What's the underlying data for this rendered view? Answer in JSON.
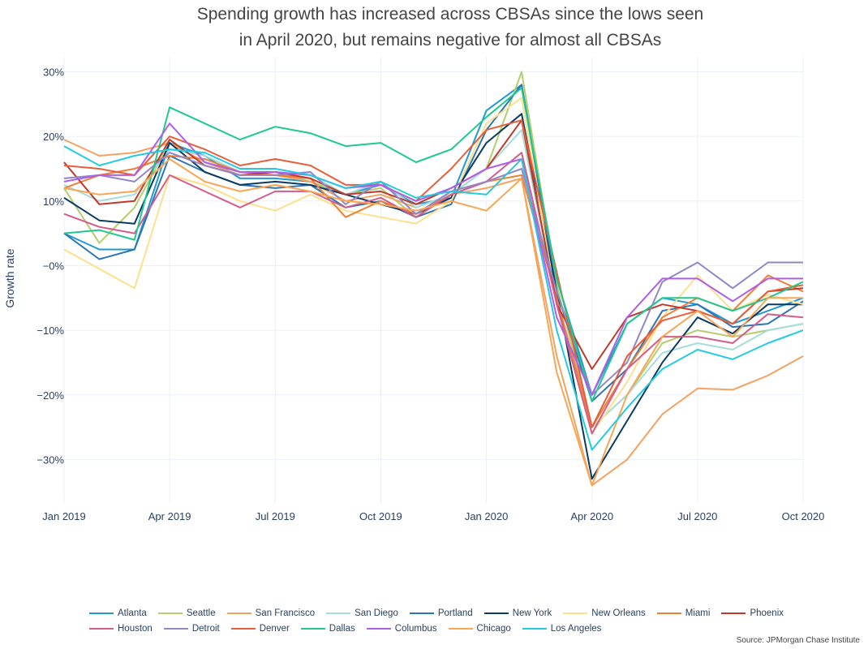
{
  "chart_data": {
    "type": "line",
    "title_lines": [
      "Spending growth has increased across CBSAs since the lows seen",
      "in April 2020, but remains negative for almost all CBSAs"
    ],
    "xlabel": "",
    "ylabel": "Growth rate",
    "x": [
      "2019-01",
      "2019-02",
      "2019-03",
      "2019-04",
      "2019-05",
      "2019-06",
      "2019-07",
      "2019-08",
      "2019-09",
      "2019-10",
      "2019-11",
      "2019-12",
      "2020-01",
      "2020-02",
      "2020-03",
      "2020-04",
      "2020-05",
      "2020-06",
      "2020-07",
      "2020-08",
      "2020-09",
      "2020-10"
    ],
    "x_ticks": [
      {
        "x": "2019-01",
        "label": "Jan 2019"
      },
      {
        "x": "2019-04",
        "label": "Apr 2019"
      },
      {
        "x": "2019-07",
        "label": "Jul 2019"
      },
      {
        "x": "2019-10",
        "label": "Oct 2019"
      },
      {
        "x": "2020-01",
        "label": "Jan 2020"
      },
      {
        "x": "2020-04",
        "label": "Apr 2020"
      },
      {
        "x": "2020-07",
        "label": "Jul 2020"
      },
      {
        "x": "2020-10",
        "label": "Oct 2020"
      }
    ],
    "y_ticks": [
      {
        "y": 30,
        "label": "30%"
      },
      {
        "y": 20,
        "label": "20%"
      },
      {
        "y": 10,
        "label": "10%"
      },
      {
        "y": 0,
        "label": "−0%"
      },
      {
        "y": -10,
        "label": "−10%"
      },
      {
        "y": -20,
        "label": "−20%"
      },
      {
        "y": -30,
        "label": "−30%"
      }
    ],
    "ylim": [
      -37,
      33
    ],
    "grid": true,
    "legend_position": "bottom",
    "series": [
      {
        "name": "Atlanta",
        "color": "#1f9ad6",
        "values": [
          5,
          2.5,
          2.5,
          19,
          17,
          13.5,
          13.5,
          13,
          11,
          12.5,
          9.5,
          10.5,
          24,
          28,
          -2,
          -20,
          -9,
          -5,
          -6,
          -9,
          -7,
          -5
        ]
      },
      {
        "name": "Seattle",
        "color": "#b5cc6f",
        "values": [
          12,
          3.5,
          9,
          19,
          16,
          14.5,
          14.5,
          13,
          11,
          12,
          7.5,
          11,
          15,
          30,
          -3,
          -25,
          -20,
          -12,
          -10,
          -11,
          -10,
          -9
        ]
      },
      {
        "name": "San Francisco",
        "color": "#f4a261",
        "values": [
          19.5,
          17,
          17.5,
          19,
          16,
          14,
          14,
          13,
          10,
          11,
          9,
          11,
          12,
          13.5,
          -14,
          -34,
          -30,
          -23,
          -19,
          -19.2,
          -17,
          -14
        ]
      },
      {
        "name": "San Diego",
        "color": "#a8dcd9",
        "values": [
          12.5,
          10,
          11,
          18,
          17,
          14.5,
          14.5,
          14,
          11,
          13,
          9,
          11,
          15,
          21,
          -6,
          -25,
          -20,
          -13.5,
          -12,
          -13,
          -10,
          -9
        ]
      },
      {
        "name": "Portland",
        "color": "#2e75b6",
        "values": [
          5,
          1,
          2.5,
          17,
          14.5,
          12.5,
          12,
          12.5,
          9,
          10,
          7.5,
          9.5,
          21,
          28,
          -4,
          -21,
          -16,
          -7,
          -6,
          -9.5,
          -9,
          -5.5
        ]
      },
      {
        "name": "New York",
        "color": "#0b3a63",
        "values": [
          10.5,
          7,
          6.5,
          19,
          14.5,
          12.5,
          13,
          12.5,
          11,
          9.5,
          8,
          10.5,
          19,
          23.5,
          -4,
          -33,
          -24,
          -15,
          -8,
          -10.5,
          -6,
          -6
        ]
      },
      {
        "name": "New Orleans",
        "color": "#fde08b",
        "values": [
          2.5,
          -0.5,
          -3.5,
          14,
          12.5,
          10,
          8.5,
          11,
          8.5,
          7.5,
          6.5,
          10,
          22,
          26,
          -6,
          -26,
          -18,
          -8,
          -1.5,
          -7,
          -4.5,
          -6
        ]
      },
      {
        "name": "Miami",
        "color": "#ef7f3a",
        "values": [
          12,
          14,
          15,
          17,
          16.5,
          14.5,
          14,
          13.5,
          7.5,
          10,
          8,
          11,
          13,
          14,
          -5,
          -25,
          -16,
          -8,
          -5,
          -7,
          -1.5,
          -4
        ]
      },
      {
        "name": "Phoenix",
        "color": "#c0392b",
        "values": [
          16,
          9.5,
          10,
          19.5,
          15.5,
          14,
          14.5,
          13.5,
          11,
          11.5,
          9.5,
          12,
          15,
          22.5,
          -6,
          -16,
          -8,
          -6,
          -7,
          -9,
          -4,
          -3.5
        ]
      },
      {
        "name": "Houston",
        "color": "#d45c8a",
        "values": [
          8,
          6,
          5,
          14,
          11.5,
          9,
          11.5,
          11.5,
          9,
          10.5,
          7.5,
          11,
          13,
          17.5,
          -6,
          -26,
          -16,
          -11,
          -11,
          -12,
          -7.5,
          -8
        ]
      },
      {
        "name": "Detroit",
        "color": "#8f87c7",
        "values": [
          13.5,
          14,
          13,
          17.5,
          15.5,
          14,
          14,
          14.5,
          9.5,
          13,
          8,
          11.5,
          13,
          15,
          -4,
          -20,
          -15,
          -2.5,
          0.5,
          -3.5,
          0.5,
          0.5
        ]
      },
      {
        "name": "Denver",
        "color": "#e85d3a",
        "values": [
          15.5,
          15,
          14,
          20,
          18,
          15.5,
          16.5,
          15.5,
          12.5,
          12.5,
          10,
          15,
          21,
          22.5,
          -1,
          -25,
          -14,
          -8.5,
          -7,
          -9,
          -4,
          -3
        ]
      },
      {
        "name": "Dallas",
        "color": "#1fc98d",
        "values": [
          5,
          5.5,
          4,
          24.5,
          22,
          19.5,
          21.5,
          20.5,
          18.5,
          19,
          16,
          18,
          23,
          27.5,
          -2,
          -21,
          -9,
          -5,
          -5,
          -7,
          -5,
          -2.5
        ]
      },
      {
        "name": "Columbus",
        "color": "#b05ee8",
        "values": [
          13,
          14,
          14,
          22,
          16,
          14.5,
          14.5,
          14,
          12,
          12.5,
          10,
          12,
          15,
          16.5,
          -8,
          -20,
          -8,
          -2,
          -2,
          -5.5,
          -2,
          -2
        ]
      },
      {
        "name": "Chicago",
        "color": "#f7a654",
        "values": [
          12,
          11,
          11.5,
          16.5,
          13,
          11.5,
          12.5,
          11.5,
          10,
          9.5,
          8.5,
          10,
          8.5,
          13.5,
          -16.5,
          -34,
          -20,
          -11,
          -7,
          -11,
          -5,
          -5
        ]
      },
      {
        "name": "Los Angeles",
        "color": "#22cbe0",
        "values": [
          18.5,
          15.5,
          17,
          18,
          17.5,
          15,
          15,
          14,
          12,
          13,
          10.5,
          11.5,
          11,
          16.5,
          -10,
          -28.5,
          -22,
          -16,
          -13,
          -14.5,
          -12,
          -10
        ]
      }
    ],
    "source": "Source: JPMorgan Chase Institute"
  }
}
